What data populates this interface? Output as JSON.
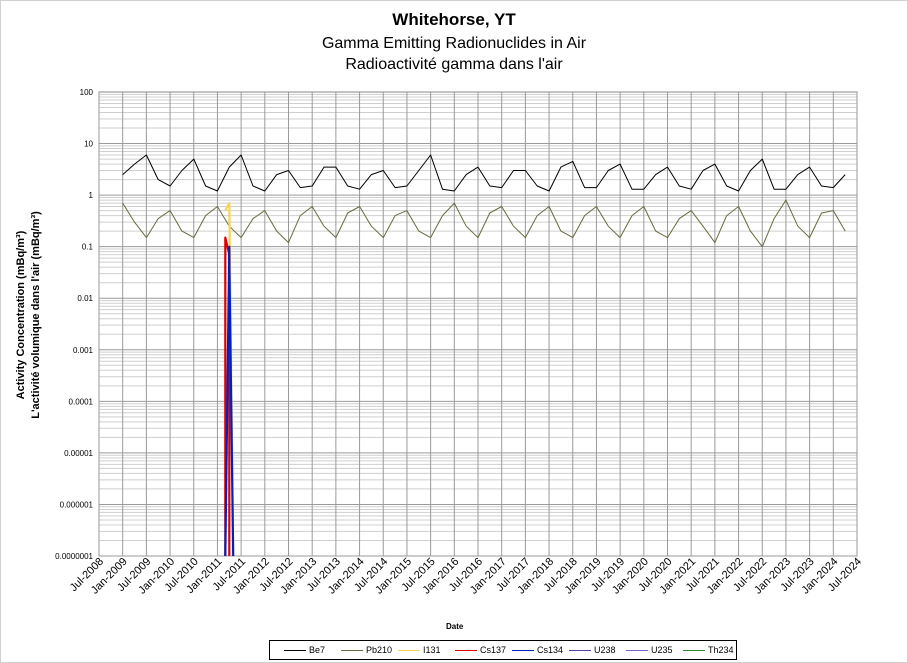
{
  "header": {
    "title": "Whitehorse, YT",
    "subtitle_en": "Gamma Emitting Radionuclides in Air",
    "subtitle_fr": "Radioactivité gamma dans l'air"
  },
  "chart_data": {
    "type": "line",
    "ylabel_en": "Activity Concentration  (mBq/m³)",
    "ylabel_fr": "L'activité volumique dans l'air (mBq/m³)",
    "xlabel": "Date",
    "y_scale": "log",
    "ylim": [
      1e-07,
      100
    ],
    "y_ticks": [
      "0.0000001",
      "0.000001",
      "0.00001",
      "0.0001",
      "0.001",
      "0.01",
      "0.1",
      "1",
      "10",
      "100"
    ],
    "xlim": [
      "2008-07",
      "2024-07"
    ],
    "x_ticks": [
      "Jul-2008",
      "Jan-2009",
      "Jul-2009",
      "Jan-2010",
      "Jul-2010",
      "Jan-2011",
      "Jul-2011",
      "Jan-2012",
      "Jul-2012",
      "Jan-2013",
      "Jul-2013",
      "Jan-2014",
      "Jul-2014",
      "Jan-2015",
      "Jul-2015",
      "Jan-2016",
      "Jul-2016",
      "Jan-2017",
      "Jul-2017",
      "Jan-2018",
      "Jul-2018",
      "Jan-2019",
      "Jul-2019",
      "Jan-2020",
      "Jul-2020",
      "Jan-2021",
      "Jul-2021",
      "Jan-2022",
      "Jul-2022",
      "Jan-2023",
      "Jul-2023",
      "Jan-2024",
      "Jul-2024"
    ],
    "grid": true,
    "legend_position": "bottom",
    "series": [
      {
        "name": "Be7",
        "color": "#000000",
        "x": [
          "2009-01",
          "2009-04",
          "2009-07",
          "2009-10",
          "2010-01",
          "2010-04",
          "2010-07",
          "2010-10",
          "2011-01",
          "2011-04",
          "2011-07",
          "2011-10",
          "2012-01",
          "2012-04",
          "2012-07",
          "2012-10",
          "2013-01",
          "2013-04",
          "2013-07",
          "2013-10",
          "2014-01",
          "2014-04",
          "2014-07",
          "2014-10",
          "2015-01",
          "2015-04",
          "2015-07",
          "2015-10",
          "2016-01",
          "2016-04",
          "2016-07",
          "2016-10",
          "2017-01",
          "2017-04",
          "2017-07",
          "2017-10",
          "2018-01",
          "2018-04",
          "2018-07",
          "2018-10",
          "2019-01",
          "2019-04",
          "2019-07",
          "2019-10",
          "2020-01",
          "2020-04",
          "2020-07",
          "2020-10",
          "2021-01",
          "2021-04",
          "2021-07",
          "2021-10",
          "2022-01",
          "2022-04",
          "2022-07",
          "2022-10",
          "2023-01",
          "2023-04",
          "2023-07",
          "2023-10",
          "2024-01",
          "2024-04"
        ],
        "values": [
          2.5,
          4.0,
          6.0,
          2.0,
          1.5,
          3.0,
          5.0,
          1.5,
          1.2,
          3.5,
          6.0,
          1.5,
          1.2,
          2.5,
          3.0,
          1.4,
          1.5,
          3.5,
          3.5,
          1.5,
          1.3,
          2.5,
          3.0,
          1.4,
          1.5,
          3.0,
          6.0,
          1.3,
          1.2,
          2.5,
          3.5,
          1.5,
          1.4,
          3.0,
          3.0,
          1.5,
          1.2,
          3.5,
          4.5,
          1.4,
          1.4,
          3.0,
          4.0,
          1.3,
          1.3,
          2.5,
          3.5,
          1.5,
          1.3,
          3.0,
          4.0,
          1.5,
          1.2,
          3.0,
          5.0,
          1.3,
          1.3,
          2.5,
          3.5,
          1.5,
          1.4,
          2.5
        ]
      },
      {
        "name": "Pb210",
        "color": "#696940",
        "x": [
          "2009-01",
          "2009-04",
          "2009-07",
          "2009-10",
          "2010-01",
          "2010-04",
          "2010-07",
          "2010-10",
          "2011-01",
          "2011-04",
          "2011-07",
          "2011-10",
          "2012-01",
          "2012-04",
          "2012-07",
          "2012-10",
          "2013-01",
          "2013-04",
          "2013-07",
          "2013-10",
          "2014-01",
          "2014-04",
          "2014-07",
          "2014-10",
          "2015-01",
          "2015-04",
          "2015-07",
          "2015-10",
          "2016-01",
          "2016-04",
          "2016-07",
          "2016-10",
          "2017-01",
          "2017-04",
          "2017-07",
          "2017-10",
          "2018-01",
          "2018-04",
          "2018-07",
          "2018-10",
          "2019-01",
          "2019-04",
          "2019-07",
          "2019-10",
          "2020-01",
          "2020-04",
          "2020-07",
          "2020-10",
          "2021-01",
          "2021-04",
          "2021-07",
          "2021-10",
          "2022-01",
          "2022-04",
          "2022-07",
          "2022-10",
          "2023-01",
          "2023-04",
          "2023-07",
          "2023-10",
          "2024-01",
          "2024-04"
        ],
        "values": [
          0.7,
          0.3,
          0.15,
          0.35,
          0.5,
          0.2,
          0.15,
          0.4,
          0.6,
          0.25,
          0.15,
          0.35,
          0.5,
          0.2,
          0.12,
          0.4,
          0.6,
          0.25,
          0.15,
          0.45,
          0.6,
          0.25,
          0.15,
          0.4,
          0.5,
          0.2,
          0.15,
          0.4,
          0.7,
          0.25,
          0.15,
          0.45,
          0.6,
          0.25,
          0.15,
          0.4,
          0.6,
          0.2,
          0.15,
          0.4,
          0.6,
          0.25,
          0.15,
          0.4,
          0.6,
          0.2,
          0.15,
          0.35,
          0.5,
          0.25,
          0.12,
          0.4,
          0.6,
          0.2,
          0.1,
          0.35,
          0.8,
          0.25,
          0.15,
          0.45,
          0.5,
          0.2
        ]
      },
      {
        "name": "I131",
        "color": "#f5d45a",
        "x": [
          "2011-03",
          "2011-04",
          "2011-05"
        ],
        "values": [
          0.5,
          0.7,
          1e-07
        ]
      },
      {
        "name": "Cs137",
        "color": "#e00000",
        "x": [
          "2011-03",
          "2011-03",
          "2011-04",
          "2011-04"
        ],
        "values": [
          1e-07,
          0.15,
          0.07,
          1e-07
        ]
      },
      {
        "name": "Cs134",
        "color": "#0020c0",
        "x": [
          "2011-03",
          "2011-04",
          "2011-04",
          "2011-05"
        ],
        "values": [
          1e-07,
          0.1,
          0.06,
          1e-07
        ]
      },
      {
        "name": "U238",
        "color": "#5b3fa8",
        "x": [],
        "values": []
      },
      {
        "name": "U235",
        "color": "#7a60d0",
        "x": [],
        "values": []
      },
      {
        "name": "Th234",
        "color": "#2e8b2e",
        "x": [],
        "values": []
      }
    ]
  }
}
